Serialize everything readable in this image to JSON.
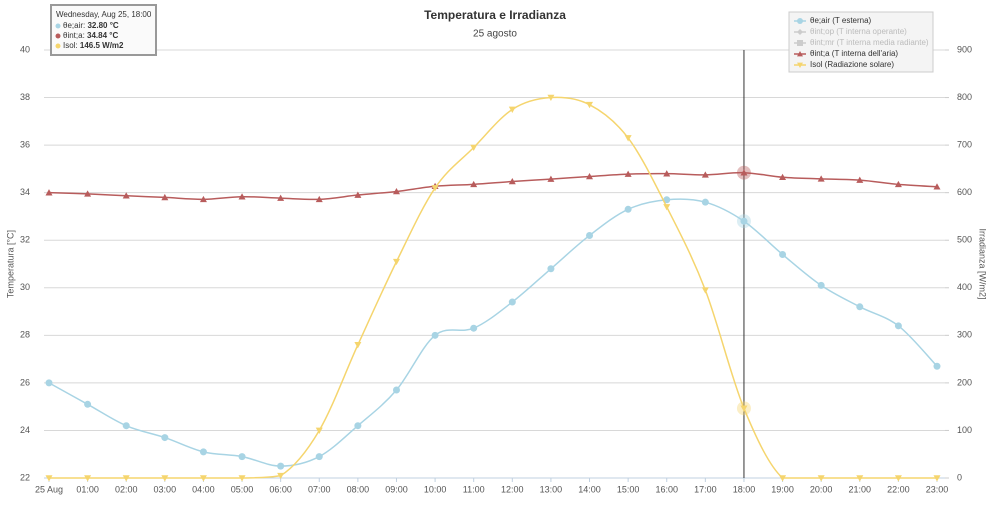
{
  "chart_data": {
    "type": "line",
    "title": "Temperatura e Irradianza",
    "subtitle": "25 agosto",
    "y_label": "Temperatura [°C]",
    "y2_label": "Irradianza [W/m2]",
    "categories": [
      "25 Aug",
      "01:00",
      "02:00",
      "03:00",
      "04:00",
      "05:00",
      "06:00",
      "07:00",
      "08:00",
      "09:00",
      "10:00",
      "11:00",
      "12:00",
      "13:00",
      "14:00",
      "15:00",
      "16:00",
      "17:00",
      "18:00",
      "19:00",
      "20:00",
      "21:00",
      "22:00",
      "23:00"
    ],
    "ylim": [
      22,
      40
    ],
    "yticks": [
      22,
      24,
      26,
      28,
      30,
      32,
      34,
      36,
      38,
      40
    ],
    "y2lim": [
      0,
      900
    ],
    "y2ticks": [
      0,
      100,
      200,
      300,
      400,
      500,
      600,
      700,
      800,
      900
    ],
    "grid": true,
    "legend": "top-right",
    "crosshair_index": 18,
    "series": [
      {
        "name": "θe;air (T esterna)",
        "color": "#a8d4e4",
        "marker": "circle",
        "values": [
          26.0,
          25.1,
          24.2,
          23.7,
          23.1,
          22.9,
          22.5,
          22.9,
          24.2,
          25.7,
          28.0,
          28.3,
          29.4,
          30.8,
          32.2,
          33.3,
          33.7,
          33.6,
          32.8,
          31.4,
          30.1,
          29.2,
          28.4,
          26.7
        ]
      },
      {
        "name": "θint;op (T interna operante)",
        "color": "#cccccc",
        "marker": "diamond",
        "visible": false
      },
      {
        "name": "θint;mr (T interna media radiante)",
        "color": "#cccccc",
        "marker": "square",
        "visible": false
      },
      {
        "name": "θint;a (T interna dell'aria)",
        "color": "#b85c5c",
        "marker": "triangle",
        "values": [
          34.0,
          33.95,
          33.87,
          33.8,
          33.72,
          33.83,
          33.77,
          33.72,
          33.9,
          34.05,
          34.27,
          34.35,
          34.47,
          34.57,
          34.68,
          34.78,
          34.8,
          34.75,
          34.84,
          34.65,
          34.58,
          34.53,
          34.35,
          34.25
        ]
      },
      {
        "name": "Isol (Radiazione solare)",
        "color": "#f5d56e",
        "marker": "triangle-down",
        "axis": "y2",
        "values": [
          0,
          0,
          0,
          0,
          0,
          0,
          5,
          100,
          280,
          455,
          610,
          695,
          775,
          800,
          785,
          715,
          570,
          395,
          146.5,
          0,
          0,
          0,
          0,
          0
        ]
      }
    ],
    "tooltip": {
      "header": "Wednesday, Aug 25, 18:00",
      "rows": [
        {
          "name": "θe;air: ",
          "value": "32.80 °C",
          "color": "#a8d4e4"
        },
        {
          "name": "θint;a: ",
          "value": "34.84 °C",
          "color": "#b85c5c"
        },
        {
          "name": "Isol: ",
          "value": "146.5 W/m2",
          "color": "#f5d56e"
        }
      ]
    }
  }
}
